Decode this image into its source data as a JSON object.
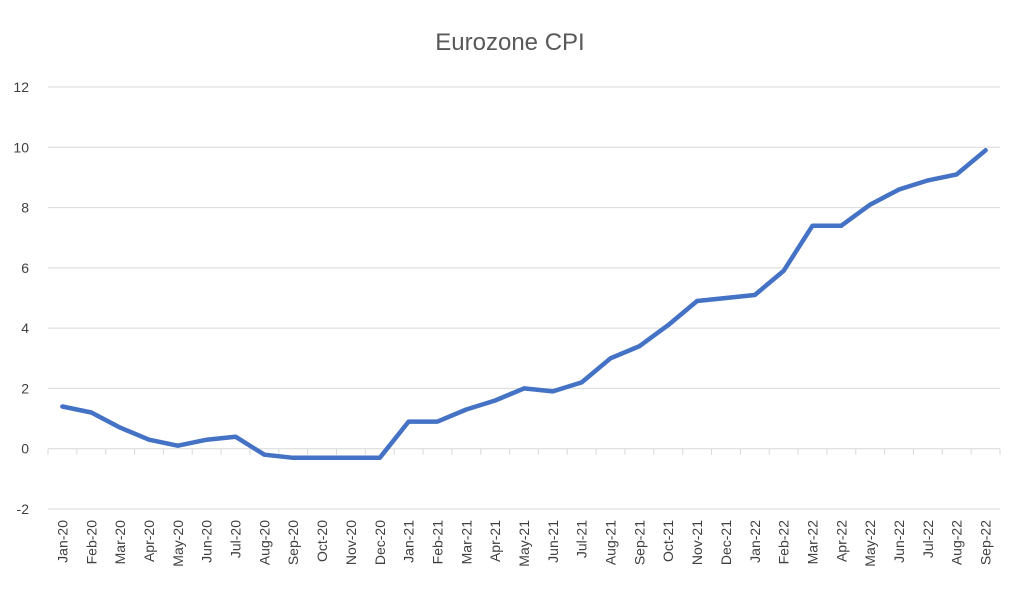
{
  "chart_data": {
    "type": "line",
    "title": "Eurozone CPI",
    "xlabel": "",
    "ylabel": "",
    "ylim": [
      -2,
      12
    ],
    "yticks": [
      -2,
      0,
      2,
      4,
      6,
      8,
      10,
      12
    ],
    "grid": true,
    "legend": "none",
    "categories": [
      "Jan-20",
      "Feb-20",
      "Mar-20",
      "Apr-20",
      "May-20",
      "Jun-20",
      "Jul-20",
      "Aug-20",
      "Sep-20",
      "Oct-20",
      "Nov-20",
      "Dec-20",
      "Jan-21",
      "Feb-21",
      "Mar-21",
      "Apr-21",
      "May-21",
      "Jun-21",
      "Jul-21",
      "Aug-21",
      "Sep-21",
      "Oct-21",
      "Nov-21",
      "Dec-21",
      "Jan-22",
      "Feb-22",
      "Mar-22",
      "Apr-22",
      "May-22",
      "Jun-22",
      "Jul-22",
      "Aug-22",
      "Sep-22"
    ],
    "series": [
      {
        "name": "Eurozone CPI",
        "color": "#4472c4",
        "values": [
          1.4,
          1.2,
          0.7,
          0.3,
          0.1,
          0.3,
          0.4,
          -0.2,
          -0.3,
          -0.3,
          -0.3,
          -0.3,
          0.9,
          0.9,
          1.3,
          1.6,
          2.0,
          1.9,
          2.2,
          3.0,
          3.4,
          4.1,
          4.9,
          5.0,
          5.1,
          5.9,
          7.4,
          7.4,
          8.1,
          8.6,
          8.9,
          9.1,
          9.9
        ]
      }
    ]
  },
  "colors": {
    "background": "#ffffff",
    "grid": "#d9d9d9",
    "title": "#595959",
    "tick_label": "#404040"
  }
}
